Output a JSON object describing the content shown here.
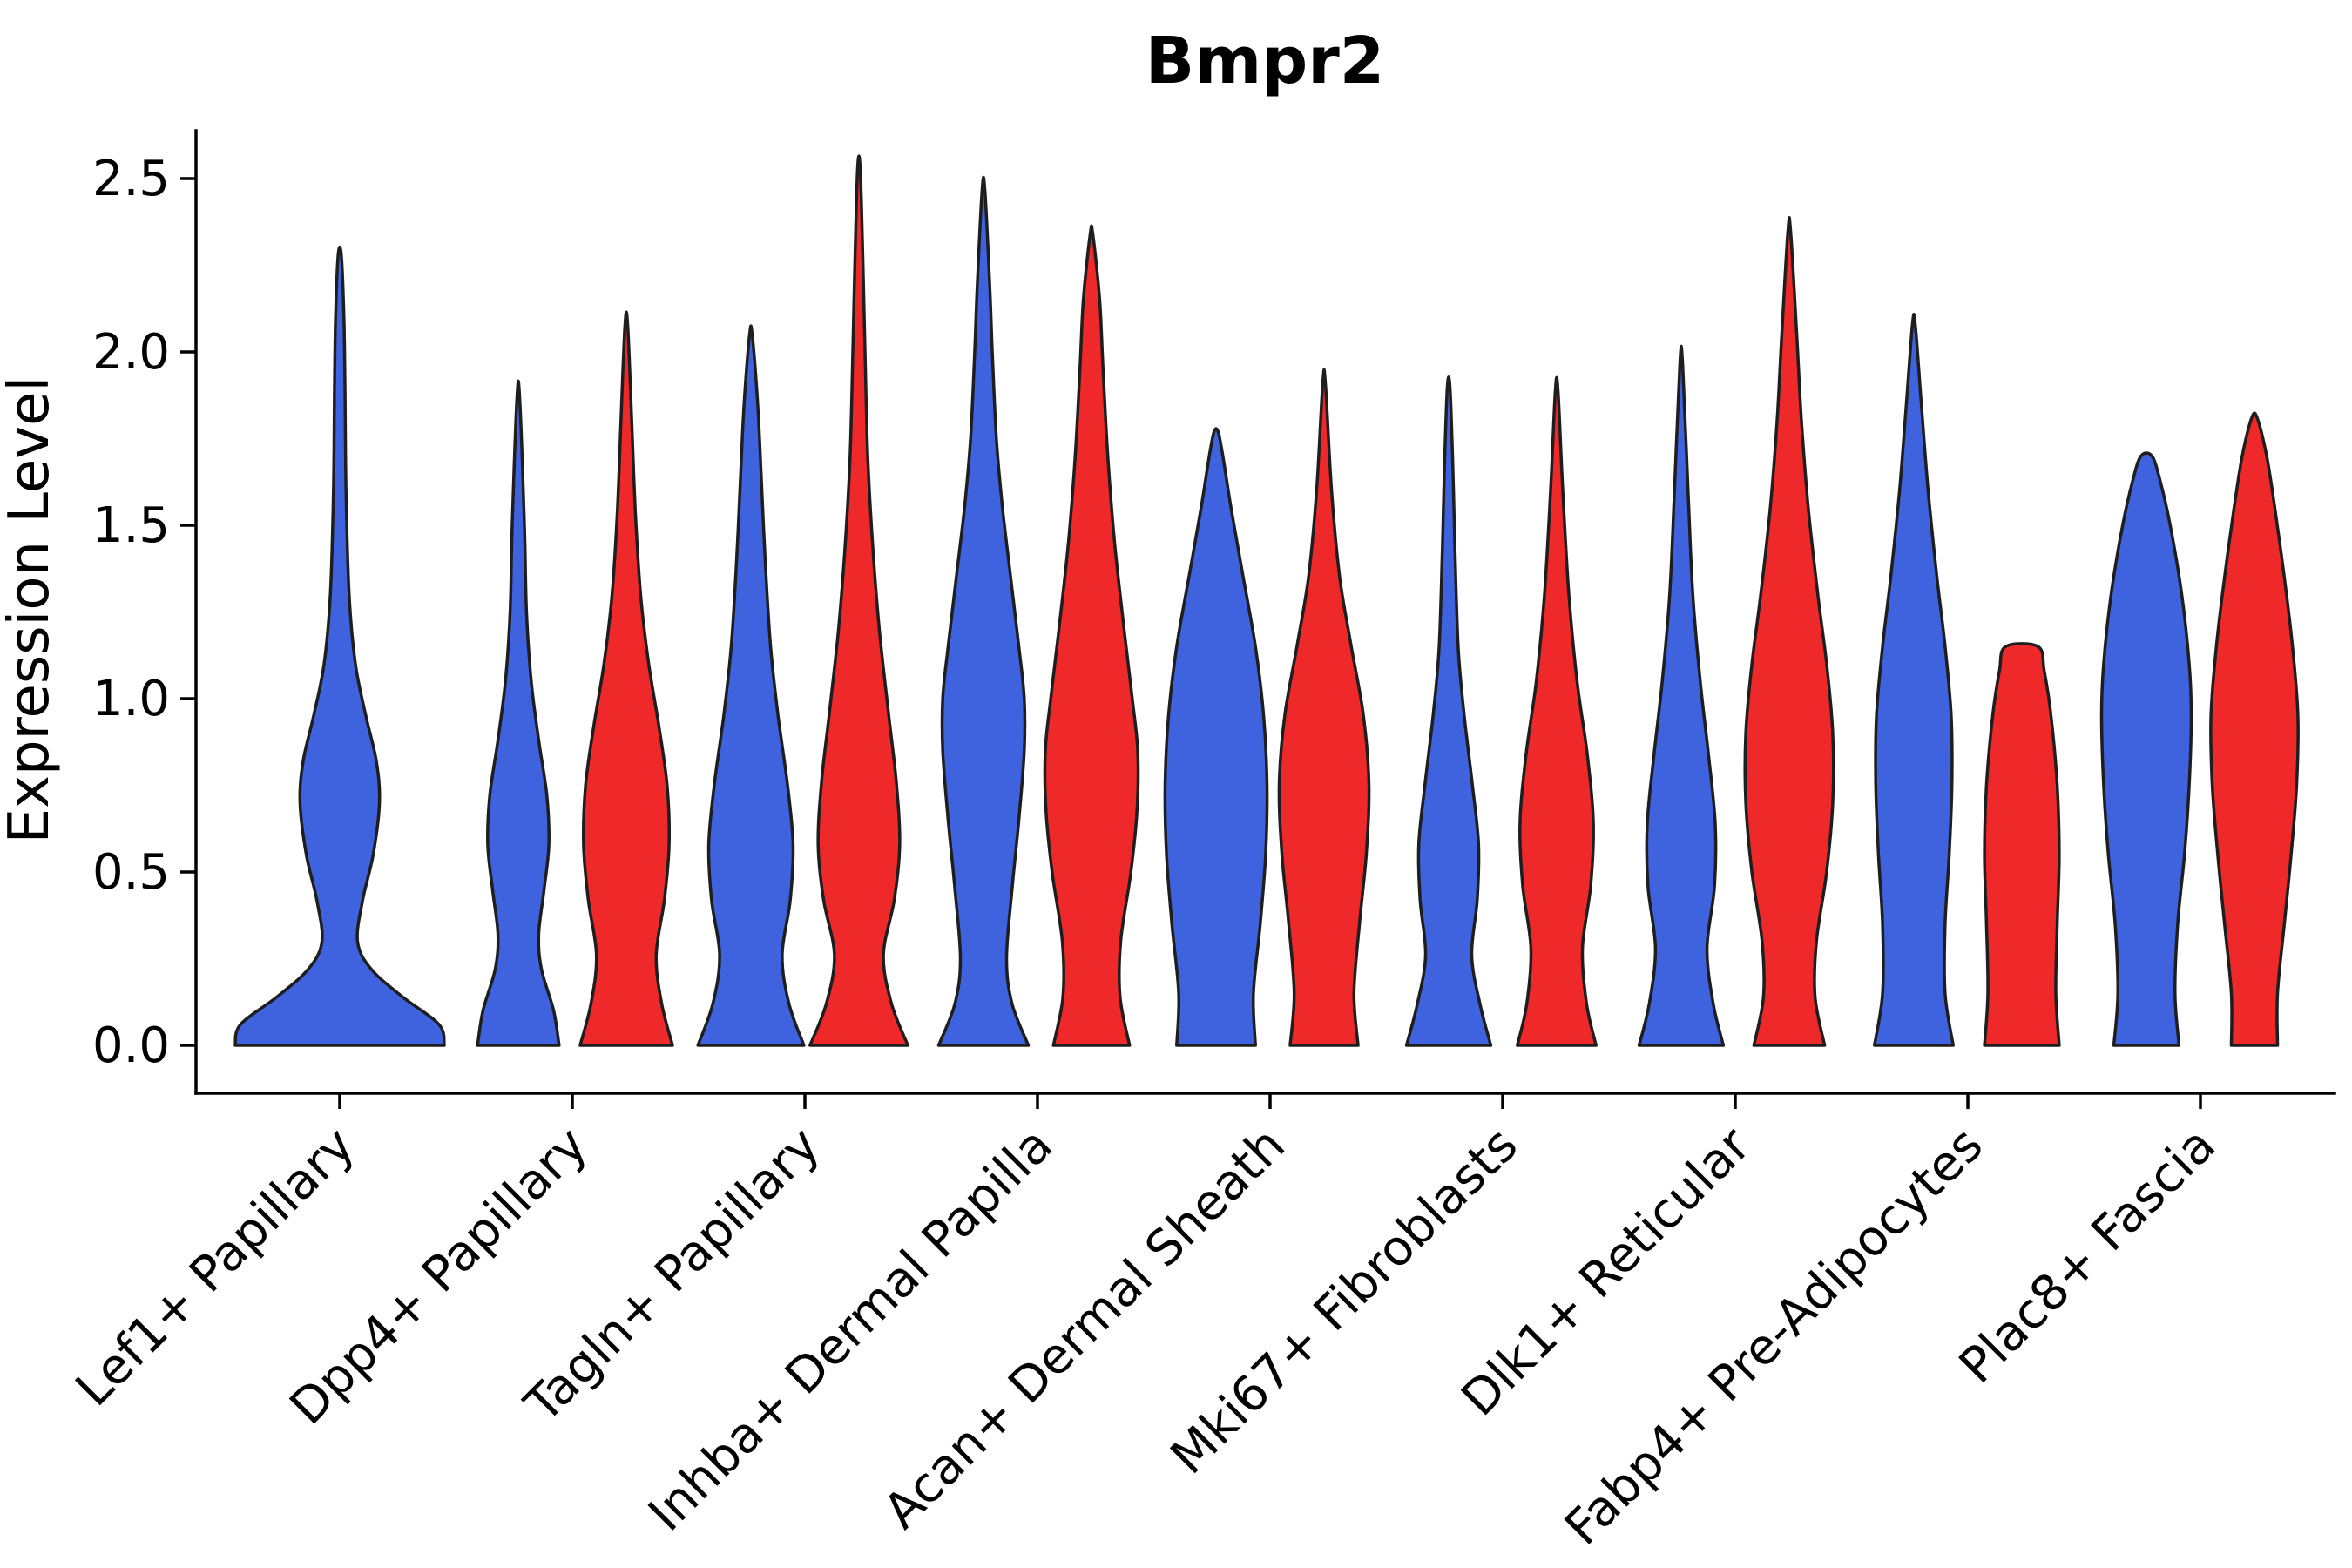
{
  "chart_data": {
    "type": "violin",
    "title": "Bmpr2",
    "xlabel": "",
    "ylabel": "Expression Level",
    "ytick_labels": [
      "0.0",
      "0.5",
      "1.0",
      "1.5",
      "2.0",
      "2.5"
    ],
    "yticks": [
      0,
      0.5,
      1.0,
      1.5,
      2.0,
      2.5
    ],
    "ylim": [
      -0.14,
      2.64
    ],
    "grid": "off",
    "legend_position": "none",
    "colors": {
      "blue": "#3F63DF",
      "red": "#EF2929",
      "stroke": "#1E1E1E"
    },
    "categories": [
      "Lef1+ Papillary",
      "Dpp4+ Papillary",
      "Tagln+ Papillary",
      "Inhba+ Dermal Papilla",
      "Acan+ Dermal Sheath",
      "Mki67+ Fibroblasts",
      "Dlk1+ Reticular",
      "Fabp4+ Pre-Adipocytes",
      "Plac8+ Fascia"
    ],
    "groups": [
      {
        "label": "Lef1+ Papillary",
        "violins": [
          {
            "color": "blue",
            "max_expression": 2.28,
            "profile": [
              [
                0,
                1.0
              ],
              [
                0.06,
                0.95
              ],
              [
                0.14,
                0.6
              ],
              [
                0.22,
                0.3
              ],
              [
                0.3,
                0.17
              ],
              [
                0.42,
                0.22
              ],
              [
                0.55,
                0.32
              ],
              [
                0.7,
                0.38
              ],
              [
                0.82,
                0.35
              ],
              [
                0.95,
                0.25
              ],
              [
                1.1,
                0.15
              ],
              [
                1.3,
                0.09
              ],
              [
                1.6,
                0.06
              ],
              [
                1.9,
                0.05
              ],
              [
                2.1,
                0.04
              ],
              [
                2.28,
                0.015
              ]
            ]
          }
        ]
      },
      {
        "label": "Dpp4+ Papillary",
        "violins": [
          {
            "color": "blue",
            "max_expression": 1.87,
            "profile": [
              [
                0,
                0.6
              ],
              [
                0.1,
                0.52
              ],
              [
                0.22,
                0.34
              ],
              [
                0.32,
                0.3
              ],
              [
                0.45,
                0.38
              ],
              [
                0.58,
                0.45
              ],
              [
                0.72,
                0.42
              ],
              [
                0.88,
                0.3
              ],
              [
                1.05,
                0.19
              ],
              [
                1.25,
                0.12
              ],
              [
                1.5,
                0.09
              ],
              [
                1.87,
                0.015
              ]
            ]
          },
          {
            "color": "red",
            "max_expression": 2.08,
            "profile": [
              [
                0,
                0.68
              ],
              [
                0.12,
                0.52
              ],
              [
                0.26,
                0.44
              ],
              [
                0.42,
                0.56
              ],
              [
                0.58,
                0.63
              ],
              [
                0.75,
                0.6
              ],
              [
                0.92,
                0.48
              ],
              [
                1.1,
                0.33
              ],
              [
                1.3,
                0.21
              ],
              [
                1.55,
                0.13
              ],
              [
                1.8,
                0.08
              ],
              [
                2.08,
                0.015
              ]
            ]
          }
        ]
      },
      {
        "label": "Tagln+ Papillary",
        "violins": [
          {
            "color": "blue",
            "max_expression": 2.05,
            "profile": [
              [
                0,
                0.78
              ],
              [
                0.12,
                0.56
              ],
              [
                0.26,
                0.46
              ],
              [
                0.42,
                0.58
              ],
              [
                0.58,
                0.62
              ],
              [
                0.75,
                0.54
              ],
              [
                0.95,
                0.4
              ],
              [
                1.15,
                0.29
              ],
              [
                1.4,
                0.21
              ],
              [
                1.65,
                0.15
              ],
              [
                1.85,
                0.1
              ],
              [
                2.05,
                0.015
              ]
            ]
          },
          {
            "color": "red",
            "max_expression": 2.53,
            "profile": [
              [
                0,
                0.72
              ],
              [
                0.12,
                0.48
              ],
              [
                0.26,
                0.36
              ],
              [
                0.42,
                0.52
              ],
              [
                0.58,
                0.6
              ],
              [
                0.76,
                0.55
              ],
              [
                0.95,
                0.44
              ],
              [
                1.2,
                0.3
              ],
              [
                1.45,
                0.2
              ],
              [
                1.7,
                0.13
              ],
              [
                2.0,
                0.09
              ],
              [
                2.25,
                0.06
              ],
              [
                2.53,
                0.015
              ]
            ]
          }
        ]
      },
      {
        "label": "Inhba+ Dermal Papilla",
        "violins": [
          {
            "color": "blue",
            "max_expression": 2.47,
            "profile": [
              [
                0,
                0.66
              ],
              [
                0.12,
                0.42
              ],
              [
                0.25,
                0.34
              ],
              [
                0.45,
                0.42
              ],
              [
                0.65,
                0.52
              ],
              [
                0.85,
                0.6
              ],
              [
                1.0,
                0.6
              ],
              [
                1.15,
                0.52
              ],
              [
                1.35,
                0.4
              ],
              [
                1.55,
                0.28
              ],
              [
                1.75,
                0.19
              ],
              [
                2.0,
                0.13
              ],
              [
                2.2,
                0.09
              ],
              [
                2.47,
                0.015
              ]
            ]
          },
          {
            "color": "red",
            "max_expression": 2.34,
            "profile": [
              [
                0,
                0.56
              ],
              [
                0.14,
                0.42
              ],
              [
                0.3,
                0.43
              ],
              [
                0.5,
                0.58
              ],
              [
                0.68,
                0.67
              ],
              [
                0.85,
                0.68
              ],
              [
                1.0,
                0.6
              ],
              [
                1.2,
                0.48
              ],
              [
                1.45,
                0.34
              ],
              [
                1.7,
                0.24
              ],
              [
                1.95,
                0.17
              ],
              [
                2.15,
                0.12
              ],
              [
                2.34,
                0.015
              ]
            ]
          }
        ]
      },
      {
        "label": "Acan+ Dermal Sheath",
        "violins": [
          {
            "color": "blue",
            "max_expression": 1.77,
            "profile": [
              [
                0,
                0.58
              ],
              [
                0.15,
                0.55
              ],
              [
                0.35,
                0.65
              ],
              [
                0.55,
                0.73
              ],
              [
                0.75,
                0.75
              ],
              [
                0.95,
                0.7
              ],
              [
                1.15,
                0.58
              ],
              [
                1.35,
                0.4
              ],
              [
                1.55,
                0.22
              ],
              [
                1.7,
                0.1
              ],
              [
                1.77,
                0.03
              ]
            ]
          },
          {
            "color": "red",
            "max_expression": 1.91,
            "profile": [
              [
                0,
                0.5
              ],
              [
                0.15,
                0.44
              ],
              [
                0.35,
                0.52
              ],
              [
                0.55,
                0.62
              ],
              [
                0.75,
                0.66
              ],
              [
                0.95,
                0.58
              ],
              [
                1.15,
                0.4
              ],
              [
                1.35,
                0.23
              ],
              [
                1.6,
                0.11
              ],
              [
                1.91,
                0.015
              ]
            ]
          }
        ]
      },
      {
        "label": "Mki67+ Fibroblasts",
        "violins": [
          {
            "color": "blue",
            "max_expression": 1.9,
            "profile": [
              [
                0,
                0.62
              ],
              [
                0.12,
                0.46
              ],
              [
                0.26,
                0.34
              ],
              [
                0.42,
                0.42
              ],
              [
                0.58,
                0.44
              ],
              [
                0.75,
                0.35
              ],
              [
                0.95,
                0.23
              ],
              [
                1.15,
                0.14
              ],
              [
                1.45,
                0.09
              ],
              [
                1.68,
                0.06
              ],
              [
                1.9,
                0.015
              ]
            ]
          },
          {
            "color": "red",
            "max_expression": 1.89,
            "profile": [
              [
                0,
                0.58
              ],
              [
                0.12,
                0.44
              ],
              [
                0.28,
                0.38
              ],
              [
                0.46,
                0.5
              ],
              [
                0.64,
                0.54
              ],
              [
                0.84,
                0.45
              ],
              [
                1.05,
                0.3
              ],
              [
                1.3,
                0.18
              ],
              [
                1.6,
                0.09
              ],
              [
                1.89,
                0.015
              ]
            ]
          }
        ]
      },
      {
        "label": "Dlk1+ Reticular",
        "violins": [
          {
            "color": "blue",
            "max_expression": 1.97,
            "profile": [
              [
                0,
                0.62
              ],
              [
                0.12,
                0.47
              ],
              [
                0.28,
                0.38
              ],
              [
                0.46,
                0.49
              ],
              [
                0.64,
                0.5
              ],
              [
                0.84,
                0.4
              ],
              [
                1.05,
                0.28
              ],
              [
                1.3,
                0.17
              ],
              [
                1.6,
                0.1
              ],
              [
                1.97,
                0.015
              ]
            ]
          },
          {
            "color": "red",
            "max_expression": 2.35,
            "profile": [
              [
                0,
                0.52
              ],
              [
                0.14,
                0.38
              ],
              [
                0.3,
                0.4
              ],
              [
                0.5,
                0.55
              ],
              [
                0.7,
                0.64
              ],
              [
                0.9,
                0.64
              ],
              [
                1.1,
                0.55
              ],
              [
                1.3,
                0.42
              ],
              [
                1.55,
                0.28
              ],
              [
                1.8,
                0.18
              ],
              [
                2.05,
                0.11
              ],
              [
                2.35,
                0.015
              ]
            ]
          }
        ]
      },
      {
        "label": "Fabp4+ Pre-Adipocytes",
        "violins": [
          {
            "color": "blue",
            "max_expression": 2.08,
            "profile": [
              [
                0,
                0.58
              ],
              [
                0.15,
                0.46
              ],
              [
                0.35,
                0.46
              ],
              [
                0.55,
                0.52
              ],
              [
                0.75,
                0.56
              ],
              [
                0.95,
                0.55
              ],
              [
                1.15,
                0.46
              ],
              [
                1.35,
                0.34
              ],
              [
                1.6,
                0.21
              ],
              [
                1.85,
                0.11
              ],
              [
                2.08,
                0.02
              ]
            ]
          },
          {
            "color": "red",
            "max_expression": 1.15,
            "profile": [
              [
                0,
                0.55
              ],
              [
                0.15,
                0.5
              ],
              [
                0.35,
                0.52
              ],
              [
                0.55,
                0.55
              ],
              [
                0.75,
                0.52
              ],
              [
                0.95,
                0.43
              ],
              [
                1.08,
                0.33
              ],
              [
                1.15,
                0.24
              ]
            ]
          }
        ]
      },
      {
        "label": "Plac8+ Fascia",
        "violins": [
          {
            "color": "blue",
            "max_expression": 1.7,
            "profile": [
              [
                0,
                0.48
              ],
              [
                0.15,
                0.42
              ],
              [
                0.35,
                0.46
              ],
              [
                0.55,
                0.56
              ],
              [
                0.75,
                0.63
              ],
              [
                0.95,
                0.66
              ],
              [
                1.1,
                0.63
              ],
              [
                1.3,
                0.52
              ],
              [
                1.5,
                0.35
              ],
              [
                1.63,
                0.2
              ],
              [
                1.7,
                0.08
              ]
            ]
          },
          {
            "color": "red",
            "max_expression": 1.81,
            "profile": [
              [
                0,
                0.34
              ],
              [
                0.15,
                0.34
              ],
              [
                0.35,
                0.44
              ],
              [
                0.55,
                0.54
              ],
              [
                0.75,
                0.62
              ],
              [
                0.95,
                0.64
              ],
              [
                1.15,
                0.56
              ],
              [
                1.35,
                0.44
              ],
              [
                1.55,
                0.3
              ],
              [
                1.7,
                0.18
              ],
              [
                1.81,
                0.04
              ]
            ]
          }
        ]
      }
    ]
  }
}
